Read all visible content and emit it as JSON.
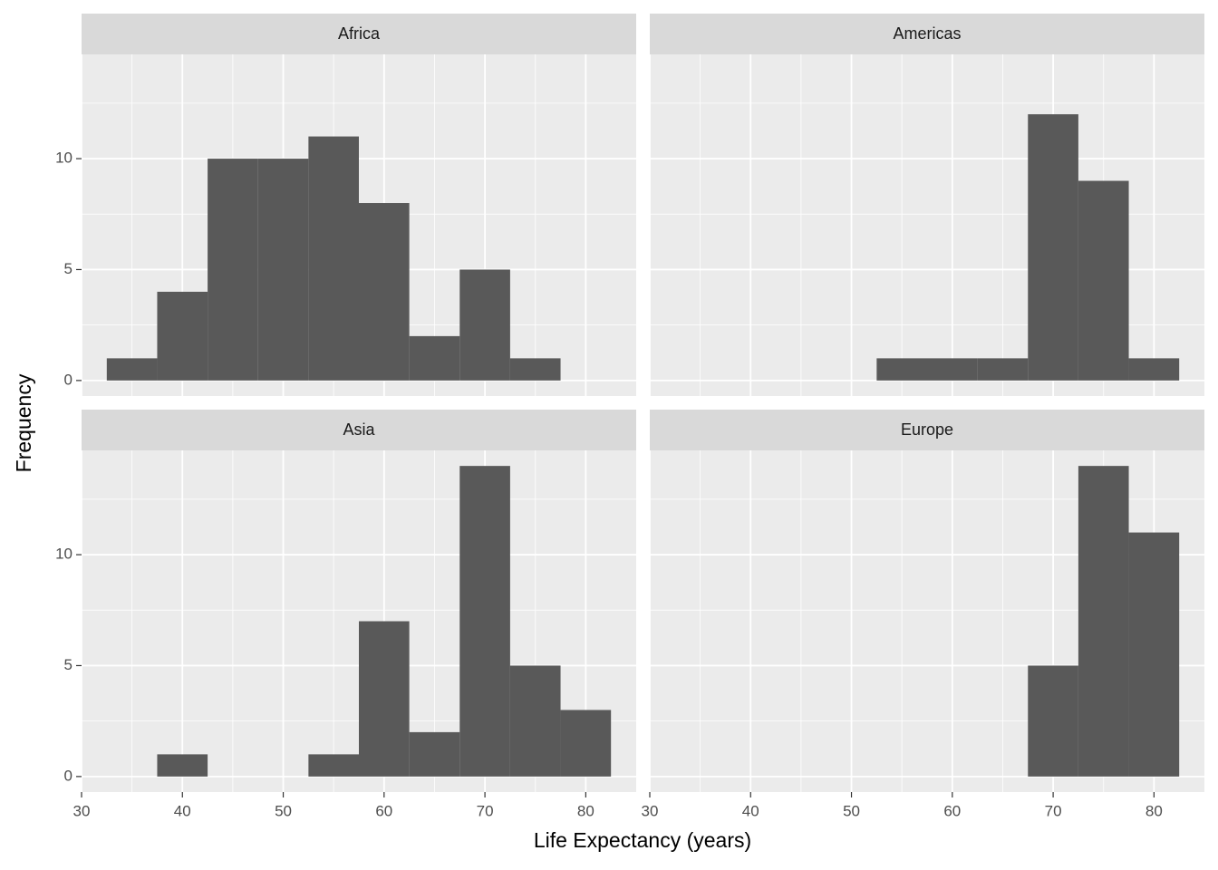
{
  "chart_data": {
    "type": "histogram",
    "x_label": "Life Expectancy (years)",
    "y_label": "Frequency",
    "color": "#595959",
    "grid": true,
    "xlim": [
      30,
      85
    ],
    "ylim": [
      -0.7,
      14.7
    ],
    "xticks": [
      30,
      40,
      50,
      60,
      70,
      80
    ],
    "yticks": [
      0,
      5,
      10
    ],
    "x_minor_breaks": [
      35,
      45,
      55,
      65,
      75
    ],
    "y_minor_breaks": [
      2.5,
      7.5,
      12.5
    ],
    "facets": [
      {
        "title": "Africa",
        "bins": [
          32.5,
          37.5,
          42.5,
          47.5,
          52.5,
          57.5,
          62.5,
          67.5,
          72.5,
          77.5,
          82.5
        ],
        "counts": [
          1,
          4,
          10,
          10,
          11,
          8,
          2,
          5,
          1,
          0
        ]
      },
      {
        "title": "Americas",
        "bins": [
          32.5,
          37.5,
          42.5,
          47.5,
          52.5,
          57.5,
          62.5,
          67.5,
          72.5,
          77.5,
          82.5
        ],
        "counts": [
          0,
          0,
          0,
          0,
          1,
          1,
          1,
          12,
          9,
          1
        ]
      },
      {
        "title": "Asia",
        "bins": [
          32.5,
          37.5,
          42.5,
          47.5,
          52.5,
          57.5,
          62.5,
          67.5,
          72.5,
          77.5,
          82.5
        ],
        "counts": [
          0,
          1,
          0,
          0,
          1,
          7,
          2,
          14,
          5,
          3
        ]
      },
      {
        "title": "Europe",
        "bins": [
          32.5,
          37.5,
          42.5,
          47.5,
          52.5,
          57.5,
          62.5,
          67.5,
          72.5,
          77.5,
          82.5
        ],
        "counts": [
          0,
          0,
          0,
          0,
          0,
          0,
          0,
          5,
          14,
          11
        ]
      }
    ]
  }
}
